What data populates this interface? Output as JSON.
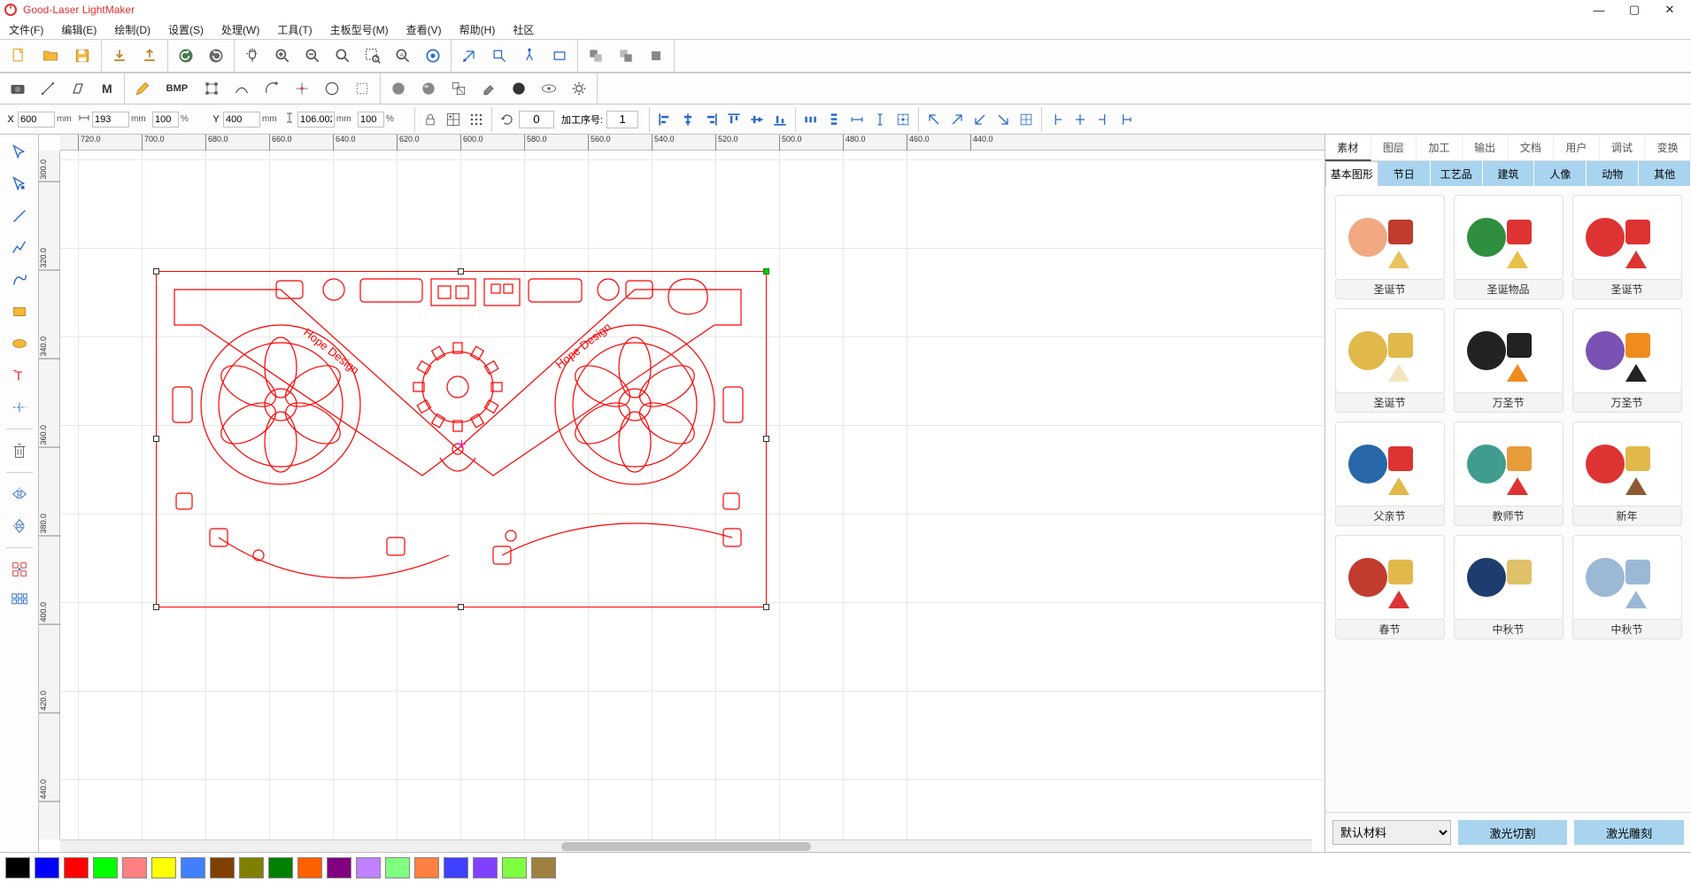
{
  "app": {
    "title": "Good-Laser LightMaker"
  },
  "menubar": [
    {
      "label": "文件(F)"
    },
    {
      "label": "编辑(E)"
    },
    {
      "label": "绘制(D)"
    },
    {
      "label": "设置(S)"
    },
    {
      "label": "处理(W)"
    },
    {
      "label": "工具(T)"
    },
    {
      "label": "主板型号(M)"
    },
    {
      "label": "查看(V)"
    },
    {
      "label": "帮助(H)"
    },
    {
      "label": "社区"
    }
  ],
  "coords": {
    "x_label": "X",
    "x_value": "600",
    "x_unit": "mm",
    "y_label": "Y",
    "y_value": "400",
    "y_unit": "mm",
    "w_value": "193",
    "w_unit": "mm",
    "h_value": "106.002",
    "h_unit": "mm",
    "sx_value": "100",
    "sx_unit": "%",
    "sy_value": "100",
    "sy_unit": "%",
    "rotate_value": "0",
    "proc_label": "加工序号:",
    "proc_value": "1"
  },
  "ruler_h": [
    "720.0",
    "700.0",
    "680.0",
    "660.0",
    "640.0",
    "620.0",
    "600.0",
    "580.0",
    "560.0",
    "540.0",
    "520.0",
    "500.0",
    "480.0",
    "460.0",
    "440.0"
  ],
  "ruler_v": [
    "300.0",
    "320.0",
    "340.0",
    "360.0",
    "380.0",
    "400.0",
    "420.0",
    "440.0"
  ],
  "right": {
    "tabs": [
      {
        "label": "素材",
        "active": true
      },
      {
        "label": "图层"
      },
      {
        "label": "加工"
      },
      {
        "label": "输出"
      },
      {
        "label": "文档"
      },
      {
        "label": "用户"
      },
      {
        "label": "调试"
      },
      {
        "label": "变换"
      }
    ],
    "cats": [
      {
        "label": "基本图形",
        "active": true
      },
      {
        "label": "节日"
      },
      {
        "label": "工艺品"
      },
      {
        "label": "建筑"
      },
      {
        "label": "人像"
      },
      {
        "label": "动物"
      },
      {
        "label": "其他"
      }
    ],
    "assets": [
      {
        "label": "圣诞节",
        "colors": [
          "#f2a982",
          "#c13b2e",
          "#e7c35e"
        ]
      },
      {
        "label": "圣诞物品",
        "colors": [
          "#2f8f3e",
          "#d33",
          "#e8c14a"
        ]
      },
      {
        "label": "圣诞节",
        "colors": [
          "#d33",
          "#d33",
          "#d33"
        ]
      },
      {
        "label": "圣诞节",
        "colors": [
          "#e0b94a",
          "#e0b94a",
          "#f2e6c0"
        ]
      },
      {
        "label": "万圣节",
        "colors": [
          "#222",
          "#222",
          "#f08c1e"
        ]
      },
      {
        "label": "万圣节",
        "colors": [
          "#7a52b3",
          "#f08c1e",
          "#222"
        ]
      },
      {
        "label": "父亲节",
        "colors": [
          "#2868a8",
          "#d33",
          "#e0b94a"
        ]
      },
      {
        "label": "教师节",
        "colors": [
          "#3f9c8e",
          "#e79c3a",
          "#d33"
        ]
      },
      {
        "label": "新年",
        "colors": [
          "#d33",
          "#e0b94a",
          "#8c5a2e"
        ]
      },
      {
        "label": "春节",
        "colors": [
          "#c13b2e",
          "#e0b94a",
          "#d33"
        ]
      },
      {
        "label": "中秋节",
        "colors": [
          "#1e3c6e",
          "#e0c068",
          "#fff"
        ]
      },
      {
        "label": "中秋节",
        "colors": [
          "#9bb8d4",
          "#9bb8d4",
          "#9bb8d4"
        ]
      }
    ],
    "material_options": [
      "默认材料"
    ],
    "action_cut": "激光切割",
    "action_engrave": "激光雕刻"
  },
  "colors": [
    "#000000",
    "#0000ff",
    "#ff0000",
    "#00ff00",
    "#ff8080",
    "#ffff00",
    "#4080ff",
    "#804000",
    "#808000",
    "#008000",
    "#ff6000",
    "#800080",
    "#c080ff",
    "#80ff80",
    "#ff8040",
    "#4040ff",
    "#8040ff",
    "#80ff40",
    "#a08040"
  ],
  "design": {
    "stroke": "#ff0000",
    "canvas_bg": "#ffffff",
    "grid_color": "#e8e8e8",
    "handle_green": "#00cc00"
  }
}
